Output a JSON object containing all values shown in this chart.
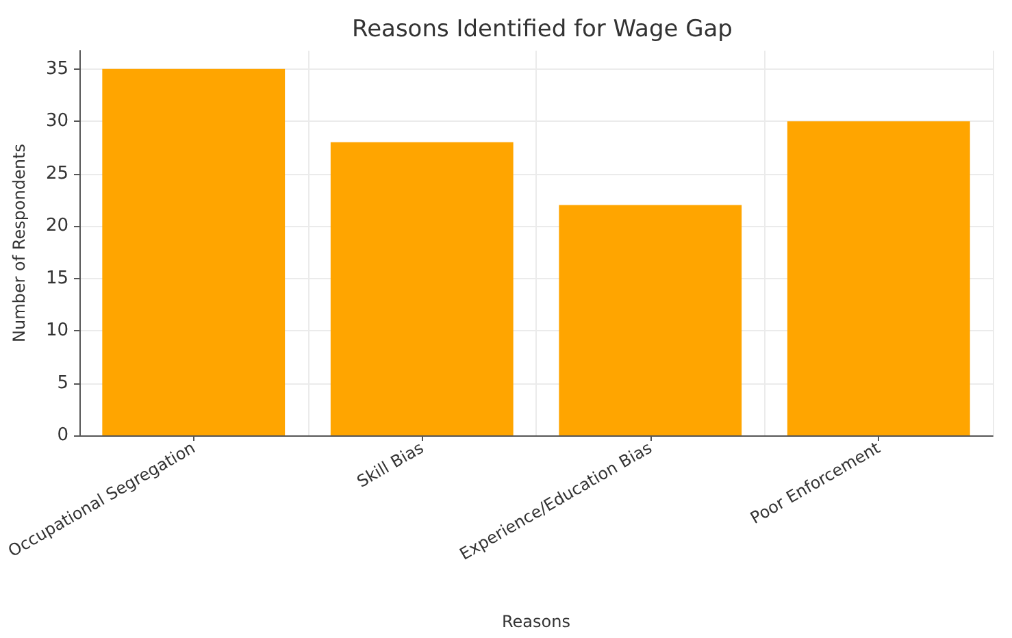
{
  "chart_data": {
    "type": "bar",
    "title": "Reasons Identified for Wage Gap",
    "xlabel": "Reasons",
    "ylabel": "Number of Respondents",
    "categories": [
      "Occupational Segregation",
      "Skill Bias",
      "Experience/Education Bias",
      "Poor Enforcement"
    ],
    "values": [
      35,
      28,
      22,
      30
    ],
    "color": "#ffa500",
    "ylim": [
      0,
      36.75
    ],
    "yticks": [
      0,
      5,
      10,
      15,
      20,
      25,
      30,
      35
    ],
    "grid": true
  }
}
